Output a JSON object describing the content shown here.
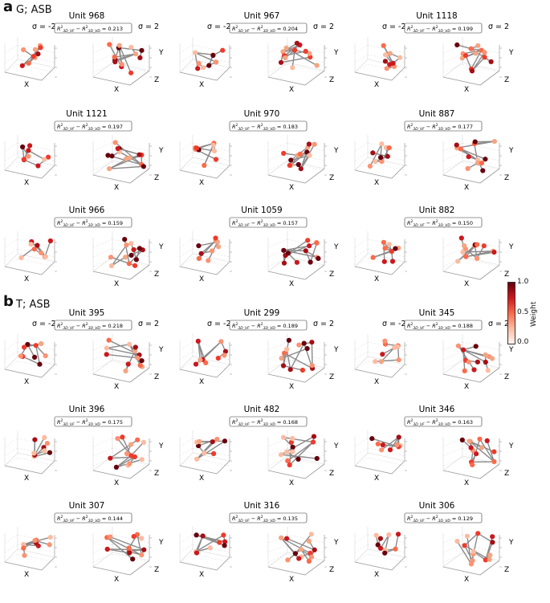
{
  "panels": [
    {
      "letter": "a",
      "title": "G; ASB",
      "units": [
        {
          "unit": "Unit 968",
          "value": "= 0.213"
        },
        {
          "unit": "Unit 967",
          "value": "= 0.204"
        },
        {
          "unit": "Unit 1118",
          "value": "= 0.199"
        },
        {
          "unit": "Unit 1121",
          "value": "= 0.197"
        },
        {
          "unit": "Unit 970",
          "value": "= 0.183"
        },
        {
          "unit": "Unit 887",
          "value": "= 0.177"
        },
        {
          "unit": "Unit 966",
          "value": "= 0.159"
        },
        {
          "unit": "Unit 1059",
          "value": "= 0.157"
        },
        {
          "unit": "Unit 882",
          "value": "= 0.150"
        }
      ]
    },
    {
      "letter": "b",
      "title": "T; ASB",
      "units": [
        {
          "unit": "Unit 395",
          "value": "= 0.218"
        },
        {
          "unit": "Unit 299",
          "value": "= 0.189"
        },
        {
          "unit": "Unit 345",
          "value": "= 0.188"
        },
        {
          "unit": "Unit 396",
          "value": "= 0.175"
        },
        {
          "unit": "Unit 482",
          "value": "= 0.168"
        },
        {
          "unit": "Unit 346",
          "value": "= 0.163"
        },
        {
          "unit": "Unit 307",
          "value": "= 0.144"
        },
        {
          "unit": "Unit 316",
          "value": "= 0.135"
        },
        {
          "unit": "Unit 306",
          "value": "= 0.129"
        }
      ]
    }
  ],
  "sigma_labels": {
    "left": "σ = -2",
    "right": "σ = 2"
  },
  "axis_labels": {
    "x": "X",
    "y": "Y",
    "z": "Z"
  },
  "metric_label": {
    "r": "R",
    "sup": "2",
    "sub1": "3D_VF",
    "minus": " − ",
    "sub2": "3D_VD"
  },
  "colorbar": {
    "label": "Weight",
    "ticks": [
      "1.0",
      "0.5",
      "0.0"
    ],
    "colors": [
      "#fff5f0",
      "#fcbba1",
      "#fb6a4a",
      "#cb181d",
      "#67000d"
    ]
  },
  "chart_data": {
    "type": "scatter",
    "description_note": "",
    "panels": [
      {
        "panel": "a",
        "group": "G; ASB",
        "units": [
          "Unit 968",
          "Unit 967",
          "Unit 1118",
          "Unit 1121",
          "Unit 970",
          "Unit 887",
          "Unit 966",
          "Unit 1059",
          "Unit 882"
        ],
        "r2_difference": [
          0.213,
          0.204,
          0.199,
          0.197,
          0.183,
          0.177,
          0.159,
          0.157,
          0.15
        ]
      },
      {
        "panel": "b",
        "group": "T; ASB",
        "units": [
          "Unit 395",
          "Unit 299",
          "Unit 345",
          "Unit 396",
          "Unit 482",
          "Unit 346",
          "Unit 307",
          "Unit 316",
          "Unit 306"
        ],
        "r2_difference": [
          0.218,
          0.189,
          0.188,
          0.175,
          0.168,
          0.163,
          0.144,
          0.135,
          0.129
        ]
      }
    ],
    "colorbar": {
      "label": "Weight",
      "range": [
        0.0,
        1.0
      ]
    }
  }
}
